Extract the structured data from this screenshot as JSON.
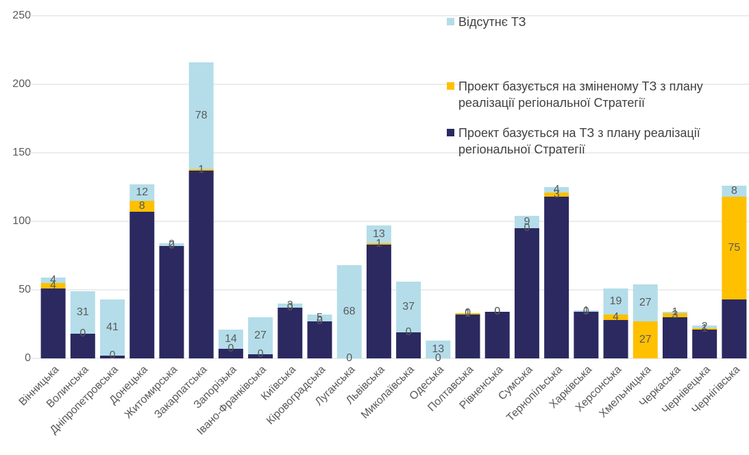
{
  "chart_data": {
    "type": "stacked_bar",
    "categories": [
      "Вінницька",
      "Волинська",
      "Дніпропетровська",
      "Донецька",
      "Житомирська",
      "Закарпатська",
      "Запорізька",
      "Івано-Франківська",
      "Київська",
      "Кіровоградська",
      "Луганська",
      "Львівська",
      "Миколаївська",
      "Одеська",
      "Полтавська",
      "Рівненська",
      "Сумська",
      "Тернопільська",
      "Харківська",
      "Херсонська",
      "Хмельницька",
      "Черкаська",
      "Чернівецька",
      "Чернігівська"
    ],
    "series": [
      {
        "name": "Проект базується на  ТЗ з плану реалізації регіональної Стратегії",
        "color": "#2b2960",
        "labels": false,
        "values": [
          51,
          18,
          2,
          107,
          82,
          137,
          7,
          3,
          37,
          27,
          0,
          83,
          19,
          0,
          32,
          34,
          95,
          118,
          34,
          28,
          0,
          30,
          21,
          43
        ]
      },
      {
        "name": "Проект базується на зміненому ТЗ з плану реалізації регіональної Стратегії",
        "color": "#ffc000",
        "labels": true,
        "values": [
          4,
          0,
          0,
          8,
          0,
          1,
          0,
          0,
          0,
          0,
          0,
          1,
          0,
          0,
          1,
          0,
          0,
          3,
          0,
          4,
          27,
          3,
          1,
          75
        ]
      },
      {
        "name": "Відсутнє ТЗ",
        "color": "#b4dde9",
        "labels": true,
        "values": [
          4,
          31,
          41,
          12,
          2,
          78,
          14,
          27,
          3,
          5,
          68,
          13,
          37,
          13,
          0,
          0,
          9,
          4,
          1,
          19,
          27,
          1,
          2,
          8
        ]
      }
    ],
    "ylim": [
      0,
      250
    ],
    "yticks": [
      0,
      50,
      100,
      150,
      200,
      250
    ],
    "grid": true,
    "legend": "top-right"
  }
}
